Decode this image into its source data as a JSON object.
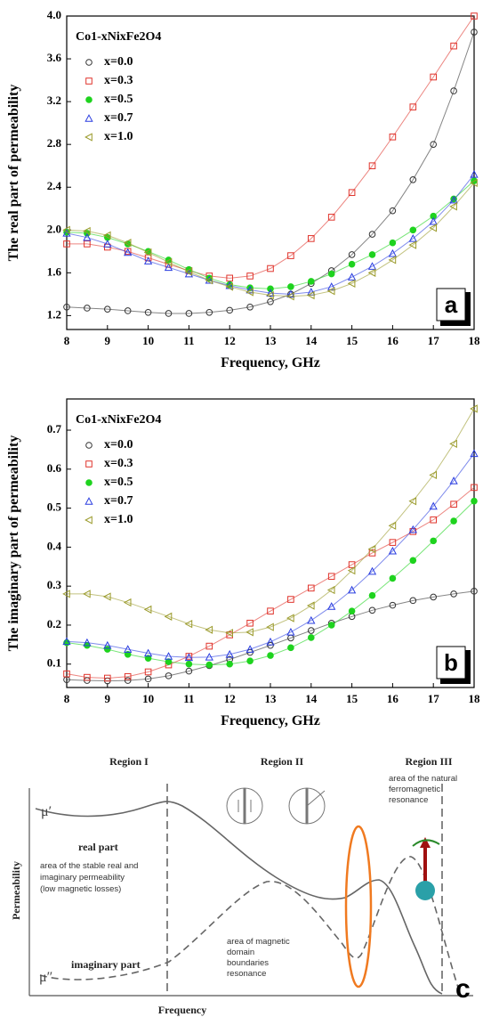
{
  "chart_data": [
    {
      "type": "scatter",
      "legend_title": "Co1-xNixFe2O4",
      "panel_label": "a",
      "x_label": "Frequency, GHz",
      "y_label": "The real part of permeability",
      "x": [
        8,
        8.5,
        9,
        9.5,
        10,
        10.5,
        11,
        11.5,
        12,
        12.5,
        13,
        13.5,
        14,
        14.5,
        15,
        15.5,
        16,
        16.5,
        17,
        17.5,
        18
      ],
      "xlim": [
        8,
        18
      ],
      "xticks": [
        8,
        9,
        10,
        11,
        12,
        13,
        14,
        15,
        16,
        17,
        18
      ],
      "ylim": [
        1.07,
        4.0
      ],
      "yticks": [
        1.2,
        1.6,
        {
          "value": 2,
          "label": "2.0"
        },
        2.4,
        2.8,
        3.2,
        3.6,
        {
          "value": 4,
          "label": "4.0"
        }
      ],
      "legend": "upper left",
      "series": [
        {
          "name": "x=0.0",
          "color": "#333333",
          "marker": "circle-open",
          "values": [
            1.28,
            1.27,
            1.26,
            1.245,
            1.23,
            1.22,
            1.22,
            1.23,
            1.25,
            1.28,
            1.33,
            1.4,
            1.5,
            1.62,
            1.77,
            1.96,
            2.18,
            2.47,
            2.8,
            3.3,
            3.85
          ]
        },
        {
          "name": "x=0.3",
          "color": "#e0342c",
          "marker": "square-open",
          "values": [
            1.87,
            1.87,
            1.84,
            1.8,
            1.74,
            1.68,
            1.62,
            1.57,
            1.55,
            1.57,
            1.64,
            1.76,
            1.92,
            2.12,
            2.35,
            2.6,
            2.87,
            3.15,
            3.43,
            3.72,
            4.0
          ]
        },
        {
          "name": "x=0.5",
          "color": "#1ed31e",
          "marker": "circle-filled",
          "values": [
            1.98,
            1.97,
            1.93,
            1.87,
            1.8,
            1.72,
            1.63,
            1.55,
            1.49,
            1.46,
            1.45,
            1.47,
            1.52,
            1.59,
            1.68,
            1.77,
            1.88,
            2.0,
            2.13,
            2.29,
            2.46
          ]
        },
        {
          "name": "x=0.7",
          "color": "#2a3de0",
          "marker": "triangle-open",
          "values": [
            1.97,
            1.93,
            1.87,
            1.79,
            1.71,
            1.65,
            1.59,
            1.53,
            1.48,
            1.44,
            1.41,
            1.4,
            1.42,
            1.47,
            1.56,
            1.66,
            1.78,
            1.92,
            2.08,
            2.28,
            2.52
          ]
        },
        {
          "name": "x=1.0",
          "color": "#9a9a2a",
          "marker": "triangle-left-open",
          "values": [
            2.0,
            1.99,
            1.95,
            1.88,
            1.79,
            1.7,
            1.61,
            1.53,
            1.47,
            1.42,
            1.39,
            1.38,
            1.39,
            1.43,
            1.5,
            1.6,
            1.72,
            1.86,
            2.02,
            2.22,
            2.44
          ]
        }
      ]
    },
    {
      "type": "scatter",
      "legend_title": "Co1-xNixFe2O4",
      "panel_label": "b",
      "x_label": "Frequency, GHz",
      "y_label": "The imaginary part of permeability",
      "x": [
        8,
        8.5,
        9,
        9.5,
        10,
        10.5,
        11,
        11.5,
        12,
        12.5,
        13,
        13.5,
        14,
        14.5,
        15,
        15.5,
        16,
        16.5,
        17,
        17.5,
        18
      ],
      "xlim": [
        8,
        18
      ],
      "xticks": [
        8,
        9,
        10,
        11,
        12,
        13,
        14,
        15,
        16,
        17,
        18
      ],
      "ylim": [
        0.04,
        0.78
      ],
      "yticks": [
        0.1,
        0.2,
        0.3,
        0.4,
        0.5,
        0.6,
        0.7
      ],
      "legend": "upper left",
      "series": [
        {
          "name": "x=0.0",
          "color": "#333333",
          "marker": "circle-open",
          "values": [
            0.06,
            0.058,
            0.057,
            0.058,
            0.062,
            0.07,
            0.082,
            0.096,
            0.112,
            0.13,
            0.148,
            0.167,
            0.186,
            0.205,
            0.222,
            0.238,
            0.251,
            0.263,
            0.272,
            0.28,
            0.287
          ]
        },
        {
          "name": "x=0.3",
          "color": "#e0342c",
          "marker": "square-open",
          "values": [
            0.075,
            0.066,
            0.064,
            0.068,
            0.08,
            0.098,
            0.12,
            0.146,
            0.175,
            0.205,
            0.236,
            0.266,
            0.295,
            0.325,
            0.355,
            0.385,
            0.412,
            0.44,
            0.47,
            0.51,
            0.553
          ]
        },
        {
          "name": "x=0.5",
          "color": "#1ed31e",
          "marker": "circle-filled",
          "values": [
            0.155,
            0.148,
            0.138,
            0.125,
            0.115,
            0.106,
            0.1,
            0.098,
            0.1,
            0.108,
            0.122,
            0.142,
            0.168,
            0.2,
            0.236,
            0.276,
            0.32,
            0.366,
            0.416,
            0.467,
            0.518
          ]
        },
        {
          "name": "x=0.7",
          "color": "#2a3de0",
          "marker": "triangle-open",
          "values": [
            0.158,
            0.155,
            0.148,
            0.138,
            0.128,
            0.12,
            0.117,
            0.118,
            0.125,
            0.138,
            0.157,
            0.182,
            0.212,
            0.248,
            0.29,
            0.338,
            0.39,
            0.445,
            0.505,
            0.57,
            0.64
          ]
        },
        {
          "name": "x=1.0",
          "color": "#9a9a2a",
          "marker": "triangle-left-open",
          "values": [
            0.28,
            0.28,
            0.273,
            0.258,
            0.24,
            0.222,
            0.203,
            0.188,
            0.18,
            0.182,
            0.195,
            0.218,
            0.25,
            0.29,
            0.34,
            0.395,
            0.455,
            0.518,
            0.585,
            0.665,
            0.755
          ]
        }
      ]
    }
  ],
  "diagram": {
    "regions": [
      "Region I",
      "Region II",
      "Region III"
    ],
    "natural_resonance": [
      "area of the natural",
      "ferromagnetic",
      "resonance"
    ],
    "mu_real": "μ′",
    "real_part": "real part",
    "stable_area": [
      "area of the stable real and",
      "imaginary permeability",
      "(low magnetic losses)"
    ],
    "y_label": "Permeability",
    "domain_area": [
      "area of magnetic",
      "domain",
      "boundaries",
      "resonance"
    ],
    "mu_imag": "μ″",
    "imaginary_part": "imaginary part",
    "panel_label": "c",
    "x_label": "Frequency"
  }
}
